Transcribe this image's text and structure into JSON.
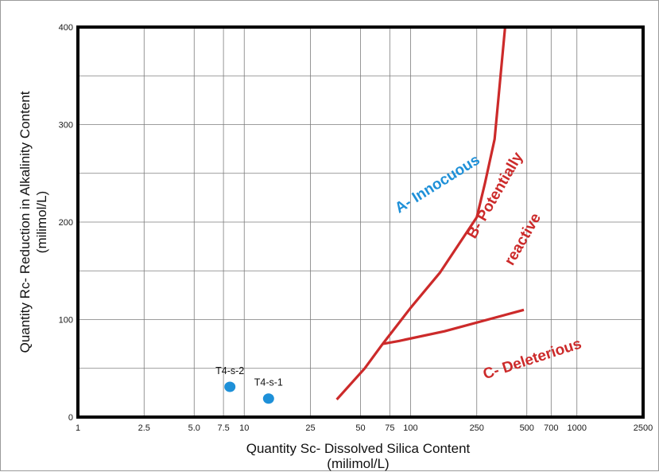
{
  "chart_data": {
    "type": "scatter",
    "xscale": "log",
    "xlim": [
      1,
      2500
    ],
    "ylim": [
      0,
      400
    ],
    "x_ticks": [
      1,
      2.5,
      5,
      7.5,
      10,
      25,
      50,
      75,
      100,
      250,
      500,
      700,
      1000,
      2500
    ],
    "x_tick_labels": [
      "1",
      "2.5",
      "5.0",
      "7.5",
      "10",
      "25",
      "50",
      "75",
      "100",
      "250",
      "500",
      "700",
      "1000",
      "2500"
    ],
    "y_ticks": [
      0,
      100,
      200,
      300,
      400
    ],
    "y_tick_labels": [
      "0",
      "100",
      "200",
      "300",
      "400"
    ],
    "xlabel_lines": [
      "Quantity Sc- Dissolved Silica Content",
      "(milimol/L)"
    ],
    "ylabel_lines": [
      "Quantity Rc- Reduction in Alkalinity Content",
      "(milimol/L)"
    ],
    "grid": true,
    "points": [
      {
        "label": "T4-s-2",
        "x": 8.2,
        "y": 31
      },
      {
        "label": "T4-s-1",
        "x": 14,
        "y": 19
      }
    ],
    "point_color": "#1e90d8",
    "boundary_color": "#cc2a2a",
    "boundaries": [
      {
        "x": [
          36,
          53,
          68,
          100,
          150,
          250,
          280,
          320,
          370
        ],
        "y": [
          18,
          50,
          75,
          112,
          148,
          205,
          240,
          285,
          400
        ]
      },
      {
        "x": [
          68,
          85,
          160,
          480
        ],
        "y": [
          75,
          78,
          88,
          110
        ]
      }
    ],
    "regions": [
      {
        "text": "A- Innocuous",
        "color": "#1e90d8",
        "x": 150,
        "y": 235,
        "rotate": -32
      },
      {
        "text": "B- Potentially",
        "color": "#cc2a2a",
        "x": 340,
        "y": 225,
        "rotate": -60
      },
      {
        "text": "reactive",
        "color": "#cc2a2a",
        "x": 500,
        "y": 180,
        "rotate": -60
      },
      {
        "text": "C- Deleterious",
        "color": "#cc2a2a",
        "x": 550,
        "y": 55,
        "rotate": -18
      }
    ]
  }
}
